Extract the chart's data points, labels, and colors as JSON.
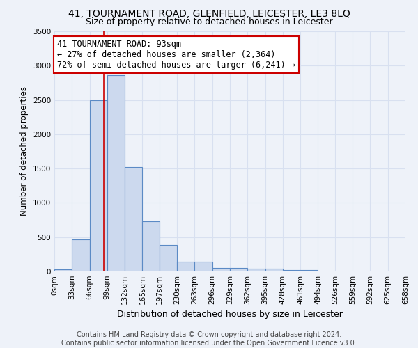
{
  "title": "41, TOURNAMENT ROAD, GLENFIELD, LEICESTER, LE3 8LQ",
  "subtitle": "Size of property relative to detached houses in Leicester",
  "xlabel": "Distribution of detached houses by size in Leicester",
  "ylabel": "Number of detached properties",
  "bin_edges": [
    0,
    33,
    66,
    99,
    132,
    165,
    197,
    230,
    263,
    296,
    329,
    362,
    395,
    428,
    461,
    494,
    526,
    559,
    592,
    625,
    658
  ],
  "bar_heights": [
    30,
    470,
    2500,
    2860,
    1520,
    730,
    390,
    145,
    145,
    55,
    55,
    40,
    40,
    25,
    25,
    5,
    5,
    5,
    5,
    5
  ],
  "bar_color": "#ccd9ee",
  "bar_edge_color": "#5b8ac5",
  "property_size": 93,
  "red_line_color": "#cc0000",
  "annotation_text": "41 TOURNAMENT ROAD: 93sqm\n← 27% of detached houses are smaller (2,364)\n72% of semi-detached houses are larger (6,241) →",
  "annotation_box_color": "#ffffff",
  "annotation_box_edge_color": "#cc0000",
  "ylim": [
    0,
    3500
  ],
  "yticks": [
    0,
    500,
    1000,
    1500,
    2000,
    2500,
    3000,
    3500
  ],
  "footer_text": "Contains HM Land Registry data © Crown copyright and database right 2024.\nContains public sector information licensed under the Open Government Licence v3.0.",
  "background_color": "#eef2f9",
  "grid_color": "#d8e0f0",
  "title_fontsize": 10,
  "subtitle_fontsize": 9,
  "xlabel_fontsize": 9,
  "ylabel_fontsize": 8.5,
  "tick_fontsize": 7.5,
  "annotation_fontsize": 8.5,
  "footer_fontsize": 7
}
